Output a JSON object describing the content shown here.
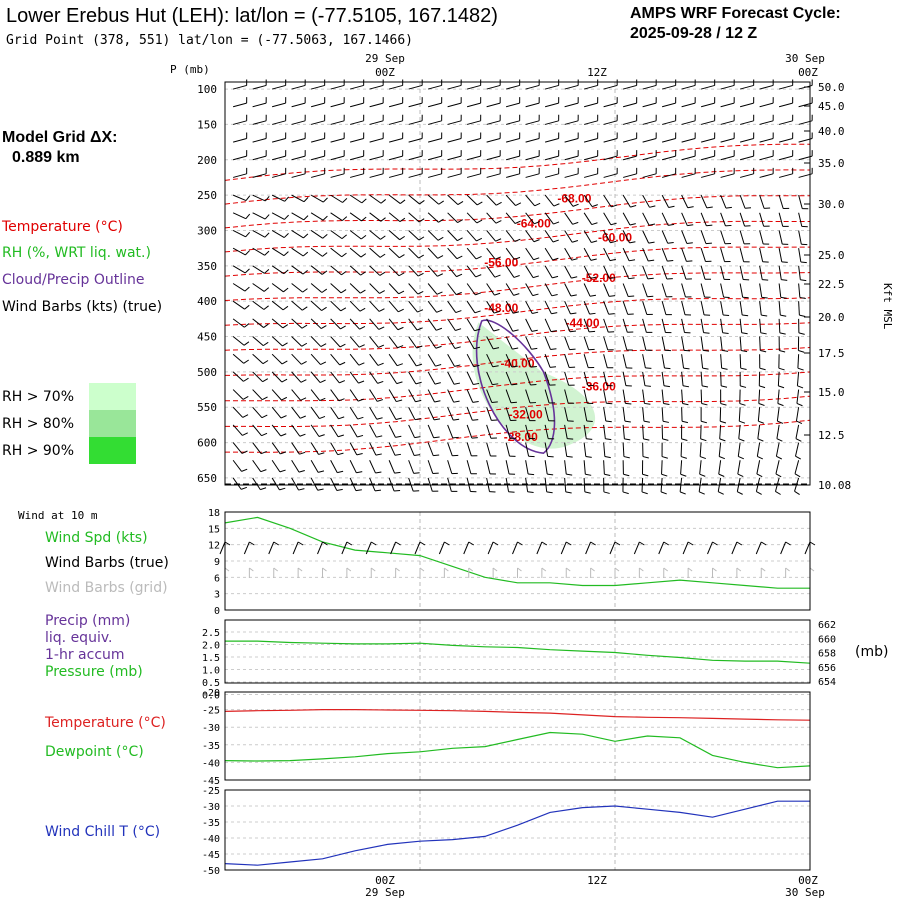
{
  "header": {
    "title": "Lower Erebus Hut (LEH):  lat/lon = (-77.5105, 167.1482)",
    "grid_point": "Grid Point (378, 551) lat/lon = (-77.5063, 167.1466)",
    "cycle_line1": "AMPS WRF Forecast Cycle:",
    "cycle_line2": "2025-09-28 / 12  Z"
  },
  "time_axis": {
    "top_dates": [
      "29 Sep",
      "30 Sep"
    ],
    "ticks": [
      "00Z",
      "12Z",
      "00Z"
    ],
    "bottom_dates": [
      "29 Sep",
      "30 Sep"
    ]
  },
  "legend": {
    "model_grid_line1": "Model Grid ΔX:",
    "model_grid_line2": "0.889 km",
    "temperature": "Temperature (°C)",
    "rh": "RH (%, WRT liq. wat.)",
    "cloud": "Cloud/Precip Outline",
    "wind_barbs": "Wind Barbs (kts) (true)",
    "rh70": "RH > 70%",
    "rh80": "RH > 80%",
    "rh90": "RH > 90%",
    "colors": {
      "rh70": "#ccffcc",
      "rh80": "#99e699",
      "rh90": "#33dd33",
      "temp": "#e00000",
      "cloud": "#663399"
    }
  },
  "chart_data": [
    {
      "type": "contour",
      "panel": "sounding",
      "ylabel_left": "P (mb)",
      "ylabel_right": "Kft MSL",
      "y_ticks_pressure": [
        "100",
        "150",
        "200",
        "250",
        "300",
        "350",
        "400",
        "450",
        "500",
        "550",
        "600",
        "650"
      ],
      "y_ticks_kft": [
        "50.0",
        "45.0",
        "40.0",
        "35.0",
        "30.0",
        "25.0",
        "22.5",
        "20.0",
        "17.5",
        "15.0",
        "12.5",
        "10.08"
      ],
      "temperature_labels": [
        "-68.00",
        "-64.00",
        "-60.00",
        "-56.00",
        "-52.00",
        "-48.00",
        "-44.00",
        "-40.00",
        "-36.00",
        "-32.00",
        "-28.00"
      ],
      "temperature_label_points": [
        {
          "hours": 9.5,
          "p": 255
        },
        {
          "hours": 7,
          "p": 290
        },
        {
          "hours": 12,
          "p": 310
        },
        {
          "hours": 5,
          "p": 345
        },
        {
          "hours": 11,
          "p": 367
        },
        {
          "hours": 5,
          "p": 410
        },
        {
          "hours": 10,
          "p": 431
        },
        {
          "hours": 6,
          "p": 488
        },
        {
          "hours": 11,
          "p": 521
        },
        {
          "hours": 6.5,
          "p": 560
        },
        {
          "hours": 6.2,
          "p": 592
        }
      ]
    },
    {
      "type": "line",
      "panel": "wind10m",
      "header": "Wind at 10 m",
      "label_speed": "Wind Spd (kts)",
      "label_barbs_true": "Wind Barbs (true)",
      "label_barbs_grid": "Wind Barbs (grid)",
      "y_ticks": [
        "18",
        "15",
        "12",
        "9",
        "6",
        "3",
        "0"
      ],
      "ylim": [
        0,
        18
      ],
      "x_hours": [
        -12,
        -10,
        -8,
        -6,
        -4,
        -2,
        0,
        2,
        4,
        6,
        8,
        10,
        12,
        14,
        16,
        18,
        20,
        22,
        24
      ],
      "values": [
        16,
        17,
        15,
        12.5,
        11,
        10.5,
        10,
        8,
        6,
        5,
        5,
        4.5,
        4.5,
        5,
        5.5,
        5,
        4.5,
        4,
        4
      ],
      "color": "#22bb22"
    },
    {
      "type": "line",
      "panel": "pressure",
      "label_precip_1": "Precip (mm)",
      "label_precip_2": "liq. equiv.",
      "label_precip_3": "1-hr accum",
      "label_pressure": "Pressure (mb)",
      "right_unit": "(mb)",
      "y_ticks_left": [
        "2.5",
        "2.0",
        "1.5",
        "1.0",
        "0.5",
        "0.0"
      ],
      "y_ticks_right": [
        "662",
        "660",
        "658",
        "656",
        "654"
      ],
      "ylim": [
        654,
        662
      ],
      "x_hours": [
        -12,
        -10,
        -8,
        -6,
        -4,
        -2,
        0,
        2,
        4,
        6,
        8,
        10,
        12,
        14,
        16,
        18,
        20,
        22,
        24
      ],
      "values": [
        659.6,
        659.6,
        659.4,
        659.3,
        659.2,
        659.2,
        659.3,
        659.0,
        658.8,
        658.7,
        658.4,
        658.2,
        658.0,
        657.6,
        657.3,
        656.9,
        656.8,
        656.8,
        656.5
      ],
      "color": "#22bb22"
    },
    {
      "type": "line",
      "panel": "temperature",
      "label_temp": "Temperature (°C)",
      "label_dew": "Dewpoint (°C)",
      "y_ticks": [
        "-20",
        "-25",
        "-30",
        "-35",
        "-40",
        "-45"
      ],
      "ylim": [
        -45,
        -20
      ],
      "x_hours": [
        -12,
        -10,
        -8,
        -6,
        -4,
        -2,
        0,
        2,
        4,
        6,
        8,
        10,
        12,
        14,
        16,
        18,
        20,
        22,
        24
      ],
      "series": [
        {
          "name": "Temperature (°C)",
          "color": "#dd2222",
          "values": [
            -25.5,
            -25.3,
            -25.2,
            -25.0,
            -25.0,
            -25.1,
            -25.2,
            -25.3,
            -25.5,
            -25.8,
            -26.0,
            -26.5,
            -27.0,
            -27.2,
            -27.3,
            -27.5,
            -27.7,
            -27.9,
            -28.0
          ]
        },
        {
          "name": "Dewpoint (°C)",
          "color": "#22bb22",
          "values": [
            -39.5,
            -39.6,
            -39.5,
            -39.0,
            -38.4,
            -37.5,
            -37.0,
            -36.0,
            -35.5,
            -33.5,
            -31.5,
            -32.0,
            -34.0,
            -32.5,
            -33.0,
            -38.0,
            -40.0,
            -41.5,
            -41.0
          ]
        }
      ]
    },
    {
      "type": "line",
      "panel": "windchill",
      "label": "Wind Chill T (°C)",
      "y_ticks": [
        "-25",
        "-30",
        "-35",
        "-40",
        "-45",
        "-50"
      ],
      "ylim": [
        -50,
        -25
      ],
      "x_hours": [
        -12,
        -10,
        -8,
        -6,
        -4,
        -2,
        0,
        2,
        4,
        6,
        8,
        10,
        12,
        14,
        16,
        18,
        20,
        22,
        24
      ],
      "values": [
        -48,
        -48.5,
        -47.5,
        -46.5,
        -44,
        -42,
        -41,
        -40.5,
        -39.5,
        -36,
        -32,
        -30.5,
        -30,
        -31,
        -32,
        -33.5,
        -31,
        -28.5,
        -28.5
      ],
      "color": "#2233bb"
    }
  ]
}
